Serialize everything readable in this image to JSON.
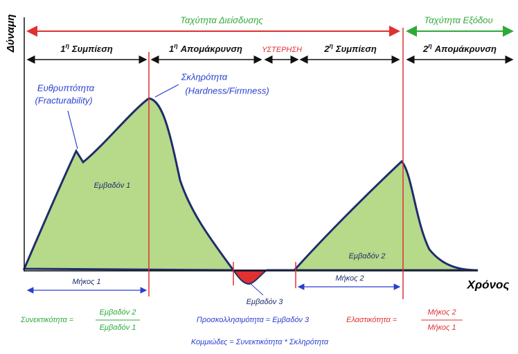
{
  "axes": {
    "y_label": "Δύναμη",
    "x_label": "Χρόνος"
  },
  "speeds": {
    "penetration": "Ταχύτητα Διείσδυσης",
    "exit": "Ταχύτητα Εξόδου"
  },
  "phases": [
    {
      "num": "1",
      "sup": "η",
      "text": "Συμπίεση"
    },
    {
      "num": "1",
      "sup": "η",
      "text": "Απομάκρυνση"
    },
    {
      "text": "ΥΣΤΕΡΗΣΗ"
    },
    {
      "num": "2",
      "sup": "η",
      "text": "Συμπίεση"
    },
    {
      "num": "2",
      "sup": "η",
      "text": "Απομάκρυνση"
    }
  ],
  "annotations": {
    "fracturability": [
      "Ευθρυπτότητα",
      "(Fracturability)"
    ],
    "hardness": [
      "Σκληρότητα",
      "(Hardness/Firmness)"
    ]
  },
  "areas": [
    "Εμβαδόν 1",
    "Εμβαδόν 2",
    "Εμβαδόν 3"
  ],
  "lengths": [
    "Μήκος 1",
    "Μήκος 2"
  ],
  "formulas": {
    "cohesiveness": {
      "left": "Συνεκτικότητα =",
      "numerator": "Εμβαδόν 2",
      "denominator": "Εμβαδόν 1"
    },
    "adhesiveness": "Προσκολλησιμότητα = Εμβαδόν 3",
    "springiness": {
      "left": "Ελαστικότητα =",
      "numerator": "Μήκος 2",
      "denominator": "Μήκος 1"
    },
    "gumminess": "Κομμιώδες = Συνεκτικότητα * Σκληρότητα"
  }
}
